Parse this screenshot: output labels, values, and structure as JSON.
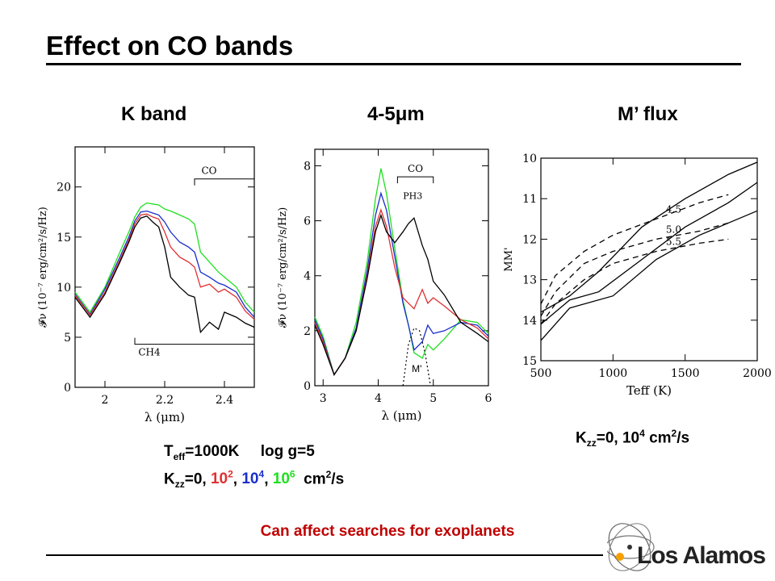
{
  "slide": {
    "title": "Effect on CO bands",
    "footnote": "Can affect searches for exoplanets",
    "logo_text": "Los Alamos"
  },
  "captions": {
    "teff": {
      "t": "T",
      "sub": "eff",
      "rest": "=1000K     log g=5"
    },
    "kzz": {
      "k": "K",
      "sub": "zz",
      "lead": "=0, ",
      "v1": "10",
      "e1": "2",
      "v2": "10",
      "e2": "4",
      "v3": "10",
      "e3": "6",
      "unit": "cm",
      "unit_exp": "2",
      "unit_tail": "/s"
    },
    "kzz_mflux": {
      "k": "K",
      "sub": "zz",
      "lead": "=0, ",
      "v": "10",
      "e": "4",
      "unit": " cm",
      "unit_exp": "2",
      "unit_tail": "/s"
    }
  },
  "colors": {
    "k0": "#000000",
    "k2": "#e03030",
    "k4": "#1a2ecc",
    "k6": "#20e020",
    "footnote": "#c00000"
  },
  "chart_data": [
    {
      "type": "line",
      "title": "K band",
      "xlabel": "λ (μm)",
      "ylabel": "𝓕ν (10⁻⁷ erg/cm²/s/Hz)",
      "xlim": [
        1.9,
        2.5
      ],
      "ylim": [
        0,
        24
      ],
      "xticks": [
        2,
        2.2,
        2.4
      ],
      "yticks": [
        0,
        5,
        10,
        15,
        20
      ],
      "annotations": [
        "CO",
        "CH4"
      ],
      "x": [
        1.9,
        1.95,
        2.0,
        2.05,
        2.08,
        2.1,
        2.12,
        2.14,
        2.16,
        2.18,
        2.2,
        2.22,
        2.25,
        2.28,
        2.3,
        2.32,
        2.35,
        2.38,
        2.4,
        2.44,
        2.47,
        2.5
      ],
      "series": [
        {
          "name": "Kzz=10^6",
          "values": [
            9.5,
            7.5,
            10,
            13.5,
            15.5,
            17,
            18,
            18.4,
            18.3,
            18.2,
            17.8,
            17.6,
            17.2,
            16.8,
            16.3,
            13.5,
            12.5,
            11.5,
            11,
            10,
            8.5,
            7.5
          ]
        },
        {
          "name": "Kzz=10^4",
          "values": [
            9.3,
            7.3,
            9.8,
            13,
            15,
            16.6,
            17.5,
            17.6,
            17.4,
            17.2,
            16.5,
            15.5,
            14.5,
            14,
            13.5,
            11.5,
            11,
            10.4,
            10.2,
            9.5,
            8,
            7
          ]
        },
        {
          "name": "Kzz=10^2",
          "values": [
            9.2,
            7.2,
            9.5,
            12.7,
            14.7,
            16.3,
            17.2,
            17.3,
            17,
            16.8,
            15.5,
            14,
            13,
            12.5,
            12,
            10,
            10.3,
            9.5,
            9.8,
            9,
            7.6,
            6.8
          ]
        },
        {
          "name": "Kzz=0",
          "values": [
            9,
            7,
            9.3,
            12.5,
            14.5,
            16,
            16.9,
            17.1,
            16.5,
            16,
            14,
            11,
            10,
            9.2,
            9,
            5.5,
            6.5,
            5.8,
            7.5,
            7,
            6.4,
            6
          ]
        }
      ]
    },
    {
      "type": "line",
      "title": "4-5μm",
      "xlabel": "λ (μm)",
      "ylabel": "𝓕ν (10⁻⁷ erg/cm²/s/Hz)",
      "xlim": [
        2.85,
        6.0
      ],
      "ylim": [
        0,
        8.6
      ],
      "xticks": [
        3,
        4,
        5,
        6
      ],
      "yticks": [
        0,
        2,
        4,
        6,
        8
      ],
      "annotations": [
        "CO",
        "PH3",
        "M'"
      ],
      "x": [
        2.85,
        3.0,
        3.2,
        3.4,
        3.6,
        3.8,
        3.95,
        4.05,
        4.15,
        4.3,
        4.45,
        4.55,
        4.65,
        4.8,
        4.9,
        5.0,
        5.2,
        5.5,
        5.8,
        6.0
      ],
      "series": [
        {
          "name": "Kzz=10^6",
          "values": [
            2.5,
            1.8,
            0.4,
            1,
            2.3,
            4.5,
            6.8,
            7.9,
            7,
            5,
            3.1,
            2.2,
            1.2,
            1.0,
            1.5,
            1.3,
            1.7,
            2.4,
            2.3,
            1.9
          ]
        },
        {
          "name": "Kzz=10^4",
          "values": [
            2.4,
            1.7,
            0.4,
            1,
            2.1,
            4.2,
            6.2,
            7.0,
            6.4,
            4.7,
            3.0,
            2.2,
            1.3,
            1.6,
            2.2,
            1.9,
            2.0,
            2.3,
            2.2,
            1.8
          ]
        },
        {
          "name": "Kzz=10^2",
          "values": [
            2.3,
            1.6,
            0.4,
            1,
            2.0,
            4.0,
            5.8,
            6.4,
            5.8,
            4.3,
            3.2,
            3.0,
            2.8,
            3.5,
            3.0,
            3.2,
            2.9,
            2.4,
            2.1,
            1.7
          ]
        },
        {
          "name": "Kzz=0",
          "values": [
            2.2,
            1.5,
            0.4,
            1,
            2.0,
            3.9,
            5.6,
            6.2,
            5.6,
            5.2,
            5.6,
            5.9,
            6.1,
            5.1,
            4.6,
            3.8,
            3.3,
            2.3,
            1.9,
            1.6
          ]
        }
      ],
      "filter_curve": {
        "x": [
          4.45,
          4.55,
          4.65,
          4.75,
          4.85,
          4.95
        ],
        "values": [
          0,
          1.5,
          2.1,
          2.0,
          1.2,
          0
        ]
      }
    },
    {
      "type": "line",
      "title": "M’ flux",
      "xlabel": "Teff (K)",
      "ylabel": "MM'",
      "xlim": [
        500,
        2000
      ],
      "ylim": [
        15,
        10
      ],
      "xticks": [
        500,
        1000,
        1500,
        2000
      ],
      "yticks": [
        10,
        11,
        12,
        13,
        14,
        15
      ],
      "grid": false,
      "series": [
        {
          "name": "4.5",
          "style": "dashed",
          "x": [
            500,
            600,
            800,
            1000,
            1300,
            1600,
            1800
          ],
          "values": [
            13.6,
            12.9,
            12.3,
            11.9,
            11.5,
            11.1,
            10.9
          ]
        },
        {
          "name": "5.0",
          "style": "dashed",
          "x": [
            500,
            600,
            800,
            1000,
            1300,
            1600,
            1800
          ],
          "values": [
            13.9,
            13.3,
            12.6,
            12.3,
            12.0,
            11.8,
            11.6
          ]
        },
        {
          "name": "5.5",
          "style": "dashed",
          "x": [
            500,
            600,
            800,
            1000,
            1300,
            1600,
            1800
          ],
          "values": [
            14.1,
            13.6,
            13.0,
            12.6,
            12.3,
            12.1,
            12.0
          ]
        },
        {
          "name": "",
          "style": "solid",
          "x": [
            500,
            700,
            900,
            1200,
            1500,
            1800,
            2000
          ],
          "values": [
            13.8,
            13.4,
            12.8,
            11.7,
            11.0,
            10.4,
            10.1
          ]
        },
        {
          "name": "",
          "style": "solid",
          "x": [
            500,
            700,
            900,
            1200,
            1500,
            1800,
            2000
          ],
          "values": [
            14.1,
            13.5,
            13.3,
            12.5,
            11.7,
            11.1,
            10.6
          ]
        },
        {
          "name": "",
          "style": "solid",
          "x": [
            500,
            700,
            1000,
            1300,
            1600,
            1800,
            2000
          ],
          "values": [
            14.5,
            13.7,
            13.4,
            12.5,
            11.9,
            11.6,
            11.3
          ]
        }
      ]
    }
  ]
}
